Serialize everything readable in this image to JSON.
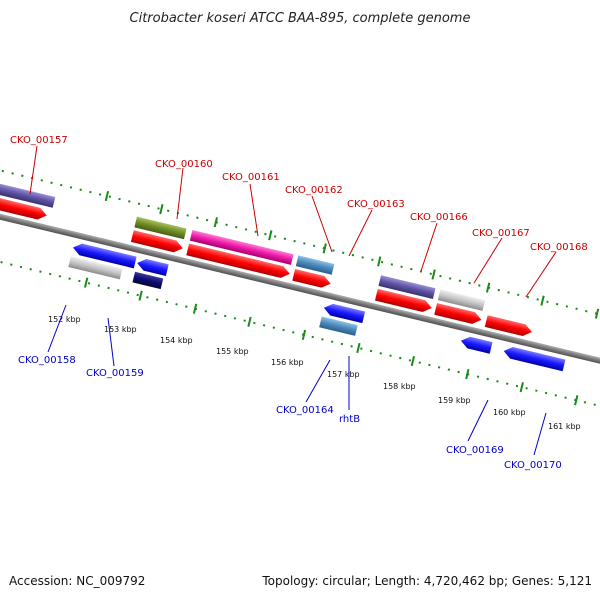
{
  "title": "Citrobacter koseri ATCC BAA-895, complete genome",
  "accession_text": "Accession: NC_009792",
  "topology_text": "Topology: circular; Length: 4,720,462 bp; Genes: 5,121",
  "ticks": [
    "152 kbp",
    "153 kbp",
    "154 kbp",
    "155 kbp",
    "156 kbp",
    "157 kbp",
    "158 kbp",
    "159 kbp",
    "160 kbp",
    "161 kbp"
  ],
  "labels_top": [
    "CKO_00157",
    "CKO_00160",
    "CKO_00161",
    "CKO_00162",
    "CKO_00163",
    "CKO_00166",
    "CKO_00167",
    "CKO_00168"
  ],
  "labels_bottom": [
    "CKO_00158",
    "CKO_00159",
    "CKO_00164",
    "rhtB",
    "CKO_00169",
    "CKO_00170"
  ],
  "colors": {
    "forward_label": "#cc0000",
    "reverse_label": "#0000cc",
    "cds_red": "#ff0000",
    "cds_blue": "#1a1aff",
    "backbone": "#808080",
    "tick_green": "#1a8a1a"
  }
}
